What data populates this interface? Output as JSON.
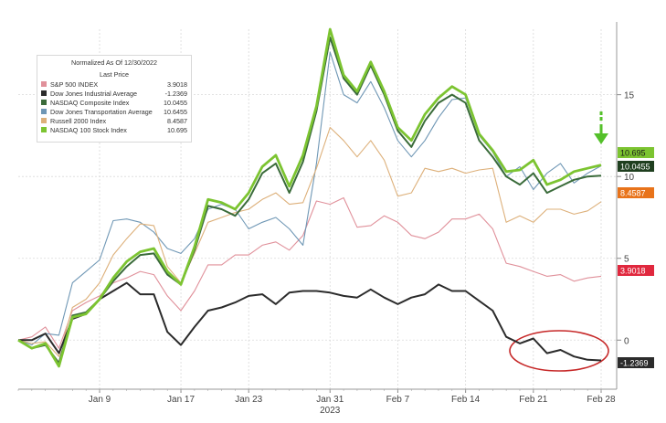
{
  "legend": {
    "title_1": "Normalized As Of 12/30/2022",
    "title_2": "Last Price"
  },
  "chart_data": {
    "type": "line",
    "title": "",
    "x_labels": [
      "Jan 9",
      "Jan 17",
      "Jan 23",
      "Jan 31",
      "Feb 7",
      "Feb 14",
      "Feb 21",
      "Feb 28"
    ],
    "x_sublabel": "2023",
    "x_label_index": [
      6,
      12,
      17,
      23,
      28,
      33,
      38,
      43
    ],
    "ylim": [
      -3,
      19
    ],
    "yticks": [
      0,
      5,
      10,
      15
    ],
    "grid": true,
    "annotations": [
      "red ellipse around Dow Jones Industrial Average Feb 21 – Feb 28",
      "green arrow pointing to NASDAQ 100 Stock Index last value"
    ],
    "series": [
      {
        "name": "S&P 500 INDEX",
        "last": "3.9018",
        "color": "#e0909a",
        "values": [
          0,
          0.2,
          0.8,
          -0.5,
          1.8,
          2.3,
          2.7,
          3.5,
          3.8,
          4.2,
          4.0,
          2.7,
          1.8,
          3.0,
          4.6,
          4.6,
          5.2,
          5.2,
          5.8,
          6.0,
          5.5,
          6.4,
          8.5,
          8.3,
          8.7,
          6.9,
          7.0,
          7.6,
          7.2,
          6.4,
          6.2,
          6.6,
          7.4,
          7.4,
          7.7,
          6.8,
          4.7,
          4.5,
          4.2,
          3.9,
          4.0,
          3.6,
          3.8,
          3.9
        ]
      },
      {
        "name": "Dow Jones Industrial Average",
        "last": "-1.2369",
        "color": "#2b2b2b",
        "values": [
          0,
          0,
          0.4,
          -0.8,
          1.3,
          1.6,
          2.5,
          3.0,
          3.5,
          2.8,
          2.8,
          0.5,
          -0.3,
          0.8,
          1.8,
          2.0,
          2.3,
          2.7,
          2.8,
          2.2,
          2.9,
          3.0,
          3.0,
          2.9,
          2.7,
          2.6,
          3.1,
          2.6,
          2.2,
          2.6,
          2.8,
          3.4,
          3.0,
          3.0,
          2.4,
          1.8,
          0.2,
          -0.2,
          0.1,
          -0.8,
          -0.6,
          -1.0,
          -1.2,
          -1.24
        ]
      },
      {
        "name": "NASDAQ Composite Index",
        "last": "10.0455",
        "color": "#3a6b3a",
        "values": [
          0,
          -0.5,
          -0.3,
          -1.4,
          1.5,
          1.7,
          2.5,
          3.6,
          4.5,
          5.2,
          5.3,
          4.0,
          3.4,
          5.5,
          8.2,
          8.0,
          7.6,
          8.6,
          10.2,
          10.8,
          9.0,
          10.9,
          14.0,
          18.5,
          16.0,
          15.0,
          16.8,
          15.0,
          12.8,
          11.8,
          13.4,
          14.5,
          15.0,
          14.5,
          12.2,
          11.2,
          10.0,
          9.5,
          10.2,
          9.0,
          9.4,
          9.8,
          10.0,
          10.05
        ]
      },
      {
        "name": "Dow Jones Transportation Average",
        "last": "10.6455",
        "color": "#6f97b5",
        "values": [
          0,
          -0.3,
          0.4,
          0.3,
          3.5,
          4.2,
          4.9,
          7.3,
          7.4,
          7.2,
          6.6,
          5.6,
          5.3,
          6.2,
          8.0,
          8.3,
          8.0,
          6.8,
          7.2,
          7.5,
          6.8,
          5.8,
          10.8,
          17.6,
          15.0,
          14.5,
          15.8,
          14.2,
          12.2,
          11.2,
          12.2,
          13.6,
          14.7,
          14.8,
          12.5,
          11.5,
          10.0,
          10.6,
          9.2,
          10.2,
          10.8,
          9.6,
          10.2,
          10.65
        ]
      },
      {
        "name": "Russell 2000 Index",
        "last": "8.4587",
        "color": "#ddb07a",
        "values": [
          0,
          -0.2,
          -0.1,
          -1.0,
          2.0,
          2.5,
          3.5,
          5.2,
          6.2,
          7.1,
          7.0,
          4.5,
          3.5,
          5.3,
          7.2,
          7.5,
          7.8,
          8.0,
          8.6,
          9.0,
          8.3,
          8.4,
          10.5,
          13.0,
          12.2,
          11.2,
          12.2,
          11.0,
          8.8,
          9.0,
          10.5,
          10.3,
          10.5,
          10.2,
          10.4,
          10.5,
          7.2,
          7.6,
          7.2,
          8.0,
          8.0,
          7.7,
          7.9,
          8.46
        ]
      },
      {
        "name": "NASDAQ 100 Stock Index",
        "last": "10.695",
        "color": "#7cc431",
        "values": [
          0,
          -0.5,
          -0.2,
          -1.6,
          1.4,
          1.6,
          2.5,
          3.8,
          4.8,
          5.4,
          5.6,
          4.2,
          3.4,
          5.7,
          8.6,
          8.4,
          8.0,
          9.0,
          10.6,
          11.3,
          9.4,
          11.3,
          14.3,
          19.0,
          16.2,
          15.2,
          17.0,
          15.2,
          13.0,
          12.2,
          13.8,
          14.8,
          15.5,
          15.0,
          12.6,
          11.6,
          10.3,
          10.4,
          11.0,
          9.5,
          9.8,
          10.3,
          10.5,
          10.7
        ]
      }
    ]
  }
}
